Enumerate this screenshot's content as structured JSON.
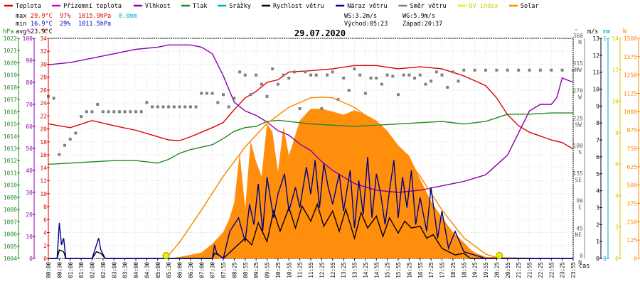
{
  "legend": [
    {
      "label": "Teplota",
      "color": "#dd0000"
    },
    {
      "label": "Přízemní teplota",
      "color": "#cc00cc"
    },
    {
      "label": "Vlhkost",
      "color": "#8800aa"
    },
    {
      "label": "Tlak",
      "color": "#228822"
    },
    {
      "label": "Srážky",
      "color": "#00aacc"
    },
    {
      "label": "Rychlost větru",
      "color": "#000000"
    },
    {
      "label": "Náraz větru",
      "color": "#000088"
    },
    {
      "label": "Směr větru",
      "color": "#808080"
    },
    {
      "label": "UV index",
      "color": "#eeee00"
    },
    {
      "label": "Solar",
      "color": "#ff8800"
    }
  ],
  "stats": {
    "max_label": "max",
    "max_temp": "29.9°C",
    "max_hum": "97%",
    "max_press": "1015.9hPa",
    "max_rain": "0.0mm",
    "min_label": "min",
    "min_temp": "16.9°C",
    "min_hum": "29%",
    "min_press": "1011.5hPa",
    "avg_label": "avg",
    "avg_temp": "23.9°C",
    "ws": "WS:3.2m/s",
    "wg": "WG:5.9m/s",
    "sunrise": "Východ:05:23",
    "sunset": "Západ:20:37"
  },
  "chart_data": {
    "type": "line",
    "title": "29.07.2020",
    "xlabel": "čas",
    "x_tick_labels": [
      "00:00",
      "00:30",
      "01:00",
      "01:30",
      "02:00",
      "02:30",
      "03:00",
      "03:30",
      "04:00",
      "04:30",
      "05:00",
      "05:30",
      "06:00",
      "06:30",
      "07:00",
      "07:30",
      "07:55",
      "08:25",
      "08:55",
      "09:25",
      "09:55",
      "10:25",
      "10:55",
      "11:25",
      "11:55",
      "12:25",
      "12:55",
      "13:25",
      "13:55",
      "14:25",
      "14:55",
      "15:25",
      "15:55",
      "16:25",
      "16:55",
      "17:25",
      "17:55",
      "18:25",
      "18:55",
      "19:25",
      "19:55",
      "20:25",
      "20:55",
      "21:25",
      "21:55",
      "22:25",
      "22:55",
      "23:25",
      "23:55"
    ],
    "axes": {
      "pressure": {
        "unit": "hPa",
        "range": [
          1004,
          1022
        ],
        "ticks": [
          "1004",
          "1005",
          "1006",
          "1007",
          "1008",
          "1009",
          "1010",
          "1011",
          "1012",
          "1013",
          "1014",
          "1015",
          "1016",
          "1017",
          "1018",
          "1019",
          "1020",
          "1021",
          "1022"
        ]
      },
      "humidity": {
        "unit": "%",
        "range": [
          0,
          100
        ],
        "ticks": [
          "0",
          "10",
          "20",
          "30",
          "40",
          "50",
          "60",
          "70",
          "80",
          "90",
          "100"
        ]
      },
      "temperature": {
        "unit": "°C",
        "range": [
          0,
          34
        ],
        "ticks": [
          "0",
          "2",
          "4",
          "6",
          "8",
          "10",
          "12",
          "14",
          "16",
          "18",
          "20",
          "22",
          "24",
          "26",
          "28",
          "30",
          "32",
          "34"
        ]
      },
      "direction": {
        "unit": "°",
        "range": [
          0,
          360
        ],
        "ticks": [
          {
            "deg": 0,
            "a": "0",
            "b": "N"
          },
          {
            "deg": 45,
            "a": "45",
            "b": "NE"
          },
          {
            "deg": 90,
            "a": "90",
            "b": "E"
          },
          {
            "deg": 135,
            "a": "135",
            "b": "SE"
          },
          {
            "deg": 180,
            "a": "180",
            "b": "S"
          },
          {
            "deg": 225,
            "a": "225",
            "b": "SW"
          },
          {
            "deg": 270,
            "a": "270",
            "b": "W"
          },
          {
            "deg": 315,
            "a": "315",
            "b": "NW"
          },
          {
            "deg": 360,
            "a": "360",
            "b": "N"
          }
        ]
      },
      "wind": {
        "unit": "m/s",
        "range": [
          0,
          13
        ],
        "ticks": [
          "0",
          "1",
          "2",
          "3",
          "4",
          "5",
          "6",
          "7",
          "8",
          "9",
          "10",
          "11",
          "12",
          "13"
        ]
      },
      "rain": {
        "unit": "mm",
        "range": [
          0,
          1
        ],
        "ticks": [
          "0",
          "1"
        ]
      },
      "uv": {
        "range": [
          0,
          14
        ],
        "ticks": [
          "0",
          "2",
          "4",
          "6",
          "8",
          "10",
          "12",
          "14"
        ]
      },
      "solar": {
        "unit": "W",
        "range": [
          0,
          1500
        ],
        "ticks": [
          "0",
          "125",
          "250",
          "375",
          "500",
          "625",
          "750",
          "875",
          "1000",
          "1125",
          "1250",
          "1375",
          "1500"
        ]
      }
    },
    "series": [
      {
        "name": "Teplota",
        "axis": "temperature",
        "color": "#dd0000",
        "x": [
          0,
          1,
          2,
          3,
          4,
          5,
          5.5,
          6,
          6.5,
          7,
          7.5,
          8,
          8.5,
          9,
          9.5,
          10,
          10.5,
          11,
          12,
          13,
          14,
          15,
          16,
          17,
          18,
          19,
          20,
          20.5,
          21,
          21.5,
          22,
          22.5,
          23,
          23.5,
          24
        ],
        "y": [
          20.8,
          20.2,
          21.3,
          20.5,
          19.8,
          18.8,
          18.3,
          18.2,
          18.8,
          19.5,
          20.2,
          21.0,
          23.0,
          24.8,
          25.8,
          27.2,
          27.6,
          28.8,
          29.0,
          29.3,
          29.8,
          29.8,
          29.3,
          29.6,
          29.3,
          28.2,
          26.7,
          24.8,
          22.2,
          20.5,
          19.5,
          18.9,
          18.3,
          17.9,
          16.9
        ]
      },
      {
        "name": "Vlhkost",
        "axis": "humidity",
        "color": "#8800aa",
        "x": [
          0,
          1,
          2,
          3,
          4,
          5,
          5.5,
          6,
          6.5,
          7,
          7.5,
          8,
          8.5,
          9,
          9.5,
          10,
          10.5,
          11,
          11.5,
          12,
          12.5,
          13,
          14,
          15,
          16,
          17,
          18,
          19,
          20,
          21,
          22,
          22.5,
          23,
          23.25,
          23.5,
          24
        ],
        "y": [
          88,
          89,
          91,
          93,
          95,
          96,
          97,
          97,
          97,
          96,
          93,
          83,
          71,
          67,
          65,
          62,
          58,
          56,
          52,
          49,
          44,
          40,
          34,
          31,
          30,
          31,
          33,
          35,
          38,
          47,
          67,
          70,
          70,
          73,
          82,
          80
        ]
      },
      {
        "name": "Tlak",
        "axis": "pressure",
        "color": "#228822",
        "x": [
          0,
          1,
          2,
          3,
          4,
          5,
          5.5,
          6,
          6.5,
          7,
          7.5,
          8,
          8.5,
          9,
          9.5,
          10,
          10.5,
          11,
          12,
          13,
          14,
          15,
          16,
          17,
          18,
          19,
          20,
          21,
          22,
          23,
          24
        ],
        "y": [
          1011.7,
          1011.8,
          1011.9,
          1012.0,
          1012.0,
          1011.8,
          1012.1,
          1012.6,
          1012.9,
          1013.1,
          1013.3,
          1013.8,
          1014.4,
          1014.7,
          1014.8,
          1015.2,
          1015.3,
          1015.2,
          1015.0,
          1014.9,
          1014.8,
          1014.9,
          1015.0,
          1015.1,
          1015.2,
          1015.0,
          1015.2,
          1015.8,
          1015.8,
          1015.9,
          1015.9
        ]
      },
      {
        "name": "Směr větru",
        "axis": "direction",
        "color": "#808080",
        "style": "points",
        "x": [
          0,
          0.25,
          0.5,
          0.75,
          1,
          1.25,
          1.5,
          1.75,
          2,
          2.25,
          2.5,
          2.75,
          3,
          3.25,
          3.5,
          3.75,
          4,
          4.25,
          4.5,
          4.75,
          5,
          5.25,
          5.5,
          5.75,
          6,
          6.25,
          6.5,
          6.75,
          7,
          7.25,
          7.5,
          7.75,
          8,
          8.25,
          8.5,
          8.75,
          9,
          9.25,
          9.5,
          9.75,
          10,
          10.25,
          10.5,
          10.75,
          11,
          11.25,
          11.5,
          11.75,
          12,
          12.25,
          12.5,
          12.75,
          13,
          13.25,
          13.5,
          13.75,
          14,
          14.25,
          14.5,
          14.75,
          15,
          15.25,
          15.5,
          15.75,
          16,
          16.25,
          16.5,
          16.75,
          17,
          17.25,
          17.5,
          17.75,
          18,
          18.25,
          18.5,
          18.75,
          19,
          19.5,
          20,
          20.5,
          21,
          21.5,
          22,
          22.5,
          23,
          23.5,
          24
        ],
        "y": [
          265,
          262,
          170,
          185,
          195,
          205,
          232,
          240,
          240,
          252,
          240,
          240,
          240,
          240,
          240,
          240,
          240,
          240,
          255,
          248,
          248,
          248,
          248,
          248,
          248,
          248,
          248,
          248,
          270,
          270,
          270,
          255,
          268,
          248,
          262,
          305,
          300,
          268,
          300,
          285,
          265,
          310,
          285,
          300,
          295,
          305,
          245,
          305,
          300,
          300,
          245,
          300,
          305,
          260,
          295,
          275,
          310,
          300,
          270,
          295,
          295,
          285,
          300,
          298,
          268,
          300,
          300,
          295,
          300,
          285,
          290,
          305,
          300,
          280,
          305,
          290,
          308,
          308,
          308,
          308,
          308,
          308,
          308,
          308,
          308,
          308,
          308
        ]
      },
      {
        "name": "Solar",
        "axis": "solar",
        "color": "#ff8800",
        "style": "area",
        "x": [
          0,
          5,
          5.5,
          6,
          7,
          7.5,
          8,
          8.25,
          8.5,
          8.75,
          9,
          9.25,
          9.5,
          9.75,
          10,
          10.25,
          10.5,
          10.75,
          11,
          11.5,
          12,
          12.5,
          13,
          13.5,
          14,
          14.5,
          15,
          15.5,
          16,
          16.5,
          17,
          17.5,
          18,
          18.5,
          19,
          19.25,
          19.5,
          20,
          24
        ],
        "y": [
          0,
          0,
          0,
          10,
          40,
          100,
          180,
          260,
          380,
          720,
          340,
          800,
          660,
          560,
          920,
          860,
          590,
          900,
          700,
          940,
          1020,
          1020,
          1000,
          980,
          1010,
          980,
          940,
          870,
          770,
          700,
          540,
          390,
          280,
          180,
          110,
          70,
          40,
          10,
          0
        ]
      },
      {
        "name": "Solar (teoretická max.)",
        "axis": "solar",
        "color": "#ff8800",
        "style": "curve",
        "x": [
          5.38,
          6,
          7,
          8,
          9,
          10,
          11,
          12,
          12.5,
          13,
          14,
          15,
          16,
          17,
          18,
          19,
          20,
          20.62
        ],
        "y": [
          0,
          110,
          330,
          560,
          760,
          920,
          1030,
          1095,
          1100,
          1095,
          1030,
          920,
          760,
          560,
          330,
          140,
          30,
          0
        ]
      },
      {
        "name": "Rychlost větru",
        "axis": "wind",
        "color": "#000000",
        "x": [
          0,
          0.4,
          0.5,
          0.7,
          0.8,
          1,
          2,
          2.2,
          2.4,
          2.6,
          3,
          7.5,
          7.6,
          7.8,
          8,
          8.5,
          9,
          9.3,
          9.6,
          10,
          10.3,
          10.6,
          11,
          11.3,
          11.6,
          12,
          12.3,
          12.6,
          13,
          13.3,
          13.6,
          14,
          14.3,
          14.6,
          15,
          15.3,
          15.6,
          16,
          16.3,
          16.6,
          17,
          17.3,
          17.6,
          18,
          18.3,
          18.6,
          19,
          19.3,
          20,
          24
        ],
        "y": [
          0,
          0,
          0.5,
          0.4,
          0,
          0,
          0,
          0.4,
          0.3,
          0,
          0,
          0,
          0.3,
          0.2,
          0,
          0.6,
          1.2,
          0.8,
          2.1,
          1.0,
          2.8,
          1.6,
          3.0,
          1.8,
          3.1,
          2.2,
          3.2,
          1.9,
          2.8,
          1.6,
          2.9,
          1.2,
          2.7,
          1.8,
          2.5,
          1.3,
          2.4,
          1.5,
          2.2,
          1.8,
          1.9,
          1.2,
          1.4,
          0.6,
          0.4,
          0.2,
          0.3,
          0,
          0,
          0
        ]
      },
      {
        "name": "Náraz větru",
        "axis": "wind",
        "color": "#000088",
        "x": [
          0,
          0.4,
          0.5,
          0.6,
          0.7,
          0.8,
          1,
          2,
          2.2,
          2.3,
          2.4,
          2.6,
          3,
          7.5,
          7.6,
          7.7,
          8,
          8.3,
          8.7,
          9,
          9.2,
          9.4,
          9.6,
          9.8,
          10,
          10.3,
          10.5,
          10.8,
          11,
          11.3,
          11.5,
          11.8,
          12,
          12.2,
          12.4,
          12.6,
          12.8,
          13,
          13.3,
          13.5,
          13.8,
          14,
          14.2,
          14.4,
          14.6,
          14.8,
          15,
          15.2,
          15.4,
          15.6,
          15.8,
          16,
          16.2,
          16.4,
          16.6,
          16.8,
          17,
          17.3,
          17.5,
          17.8,
          18,
          18.3,
          18.6,
          19,
          20,
          24
        ],
        "y": [
          0,
          0,
          2.1,
          0.8,
          1.2,
          0,
          0,
          0,
          0.8,
          1.2,
          0.5,
          0,
          0,
          0,
          0.8,
          0.3,
          0,
          1.6,
          2.4,
          1.0,
          3.2,
          2.0,
          4.4,
          1.6,
          4.8,
          2.4,
          3.8,
          5.0,
          2.8,
          4.2,
          3.0,
          5.4,
          3.8,
          5.8,
          3.0,
          5.6,
          4.2,
          3.2,
          5.0,
          2.8,
          5.2,
          1.8,
          4.6,
          2.6,
          6.0,
          2.4,
          5.0,
          3.8,
          2.0,
          4.0,
          5.8,
          2.4,
          4.8,
          3.0,
          5.2,
          2.0,
          3.6,
          1.6,
          4.2,
          1.2,
          2.8,
          0.6,
          1.6,
          0.4,
          0,
          0
        ]
      }
    ],
    "uv_markers": [
      {
        "x": 5.38,
        "y": 0
      },
      {
        "x": 20.62,
        "y": 0
      }
    ]
  }
}
